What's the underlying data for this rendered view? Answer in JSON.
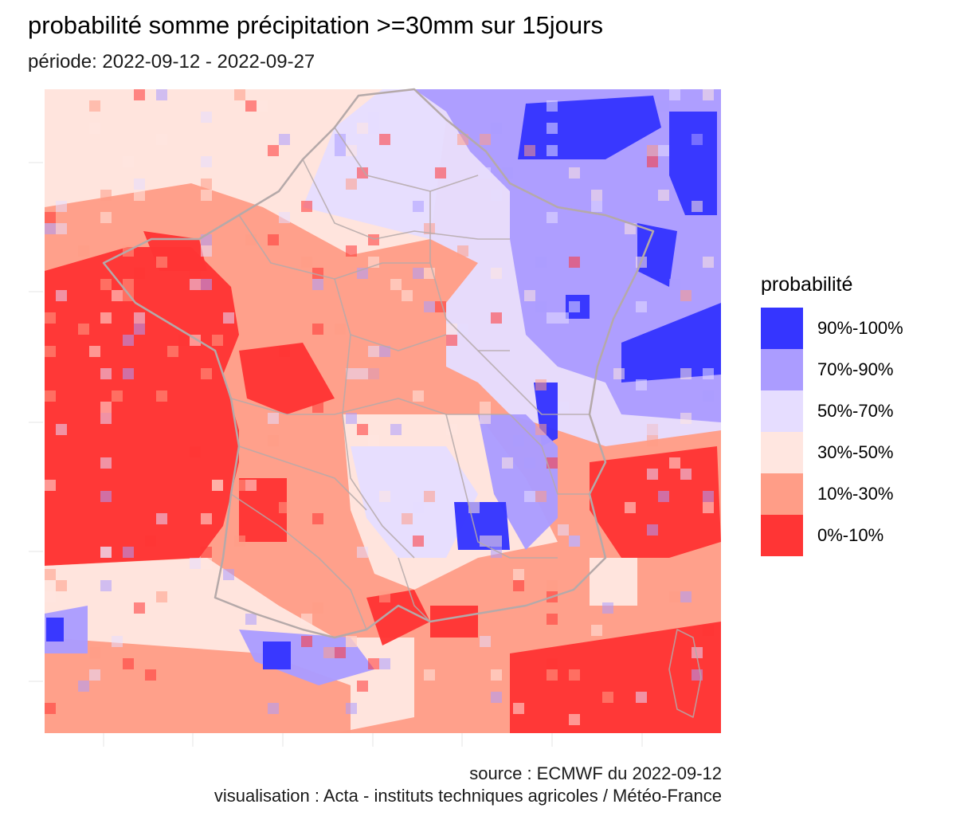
{
  "title": "probabilité somme précipitation >=30mm sur 15jours",
  "subtitle": "période: 2022-09-12 - 2022-09-27",
  "legend": {
    "title": "probabilité",
    "items": [
      {
        "label": "90%-100%",
        "color": "#3535ff"
      },
      {
        "label": "70%-90%",
        "color": "#ab9cff"
      },
      {
        "label": "50%-70%",
        "color": "#e6ddff"
      },
      {
        "label": "30%-50%",
        "color": "#ffe6e0"
      },
      {
        "label": "10%-30%",
        "color": "#ff9d87"
      },
      {
        "label": "0%-10%",
        "color": "#ff3535"
      }
    ]
  },
  "caption": {
    "source": "source : ECMWF du 2022-09-12",
    "visualisation": "visualisation : Acta - instituts techniques agricoles / Météo-France"
  },
  "map": {
    "region": "France",
    "background_color": "#ffffff",
    "border_color": "#b5a9a9"
  }
}
